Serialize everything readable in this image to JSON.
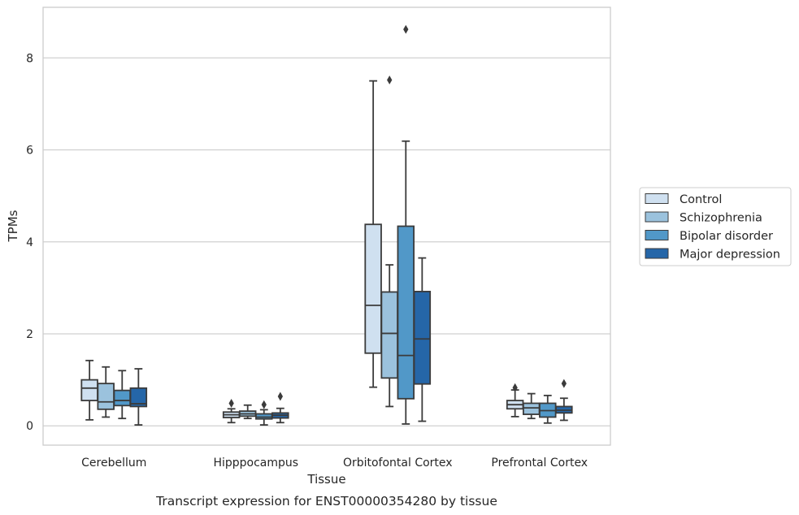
{
  "chart_data": {
    "type": "box",
    "title": "Transcript expression for ENST00000354280 by tissue",
    "xlabel": "Tissue",
    "ylabel": "TPMs",
    "ylim": [
      -0.42,
      9.1
    ],
    "yticks": [
      0,
      2,
      4,
      6,
      8
    ],
    "grid": "horizontal",
    "legend_position": "right",
    "categories": [
      "Cerebellum",
      "Hipppocampus",
      "Orbitofontal Cortex",
      "Prefrontal Cortex"
    ],
    "series": [
      {
        "name": "Control",
        "color": "#cfe0f0",
        "boxes": [
          {
            "whislo": 0.13,
            "q1": 0.55,
            "med": 0.82,
            "q3": 1.0,
            "whishi": 1.42,
            "fliers": []
          },
          {
            "whislo": 0.07,
            "q1": 0.18,
            "med": 0.24,
            "q3": 0.3,
            "whishi": 0.37,
            "fliers": [
              0.49
            ]
          },
          {
            "whislo": 0.84,
            "q1": 1.58,
            "med": 2.62,
            "q3": 4.38,
            "whishi": 7.5,
            "fliers": []
          },
          {
            "whislo": 0.2,
            "q1": 0.37,
            "med": 0.46,
            "q3": 0.55,
            "whishi": 0.78,
            "fliers": [
              0.83
            ]
          }
        ]
      },
      {
        "name": "Schizophrenia",
        "color": "#9bc2dd",
        "boxes": [
          {
            "whislo": 0.19,
            "q1": 0.36,
            "med": 0.52,
            "q3": 0.92,
            "whishi": 1.28,
            "fliers": []
          },
          {
            "whislo": 0.16,
            "q1": 0.21,
            "med": 0.26,
            "q3": 0.32,
            "whishi": 0.45,
            "fliers": []
          },
          {
            "whislo": 0.42,
            "q1": 1.04,
            "med": 2.01,
            "q3": 2.91,
            "whishi": 3.5,
            "fliers": [
              7.52
            ]
          },
          {
            "whislo": 0.16,
            "q1": 0.25,
            "med": 0.39,
            "q3": 0.49,
            "whishi": 0.7,
            "fliers": []
          }
        ]
      },
      {
        "name": "Bipolar disorder",
        "color": "#5198c8",
        "boxes": [
          {
            "whislo": 0.16,
            "q1": 0.44,
            "med": 0.55,
            "q3": 0.77,
            "whishi": 1.2,
            "fliers": []
          },
          {
            "whislo": 0.02,
            "q1": 0.15,
            "med": 0.19,
            "q3": 0.26,
            "whishi": 0.35,
            "fliers": [
              0.46
            ]
          },
          {
            "whislo": 0.04,
            "q1": 0.59,
            "med": 1.53,
            "q3": 4.34,
            "whishi": 6.19,
            "fliers": [
              8.62
            ]
          },
          {
            "whislo": 0.06,
            "q1": 0.19,
            "med": 0.33,
            "q3": 0.49,
            "whishi": 0.66,
            "fliers": []
          }
        ]
      },
      {
        "name": "Major depression",
        "color": "#2566a8",
        "boxes": [
          {
            "whislo": 0.02,
            "q1": 0.42,
            "med": 0.48,
            "q3": 0.82,
            "whishi": 1.24,
            "fliers": []
          },
          {
            "whislo": 0.07,
            "q1": 0.17,
            "med": 0.23,
            "q3": 0.28,
            "whishi": 0.38,
            "fliers": [
              0.64
            ]
          },
          {
            "whislo": 0.1,
            "q1": 0.91,
            "med": 1.89,
            "q3": 2.92,
            "whishi": 3.65,
            "fliers": []
          },
          {
            "whislo": 0.12,
            "q1": 0.28,
            "med": 0.34,
            "q3": 0.42,
            "whishi": 0.6,
            "fliers": [
              0.92
            ]
          }
        ]
      }
    ]
  }
}
